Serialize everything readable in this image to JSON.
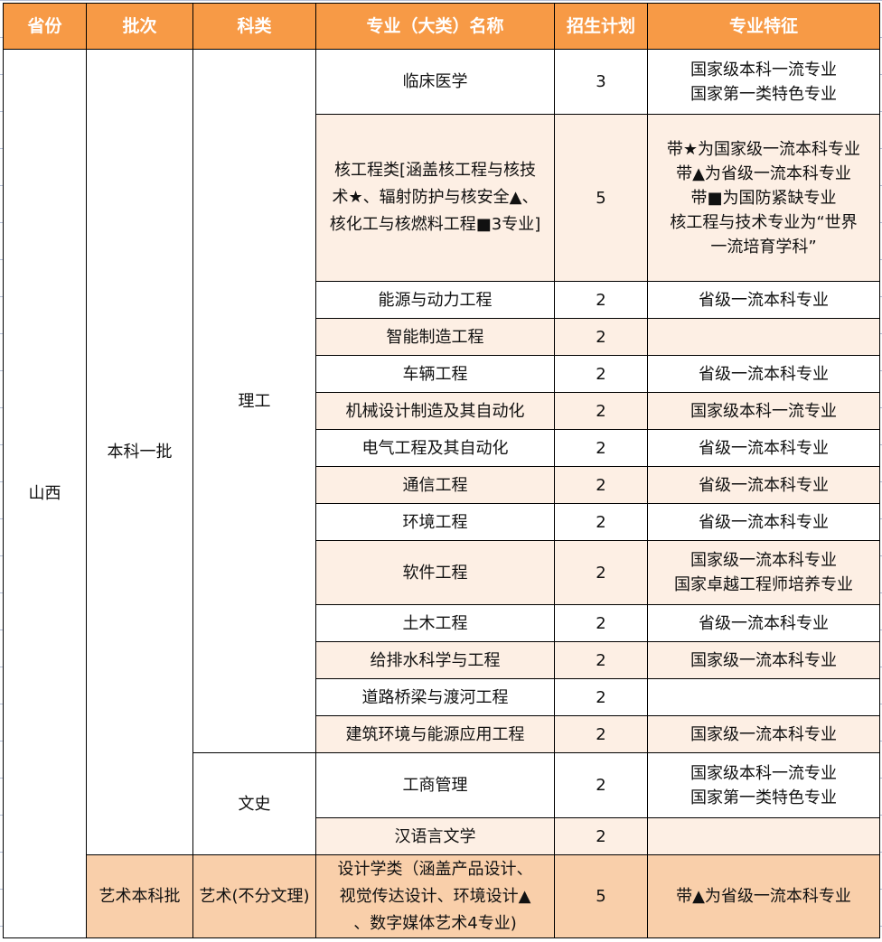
{
  "headers": [
    "省份",
    "批次",
    "科类",
    "专业（大类）名称",
    "招生计划",
    "专业特征"
  ],
  "province": "山西",
  "batches": [
    "本科一批",
    "艺术本科批"
  ],
  "categories": [
    "理工",
    "文史",
    "艺术(不分文理)"
  ],
  "colors": {
    "header_bg": "#f79a46",
    "alt_row_bg": "#fdefe4",
    "art_row_bg": "#f9cfaa"
  },
  "rows": [
    {
      "major": [
        "临床医学"
      ],
      "plan": "3",
      "features": [
        "国家级本科一流专业",
        "国家第一类特色专业"
      ]
    },
    {
      "major": [
        "核工程类[涵盖核工程与核技",
        "术★、辐射防护与核安全▲、",
        "核化工与核燃料工程■3专业]"
      ],
      "plan": "5",
      "features": [
        "带★为国家级一流本科专业",
        "带▲为省级一流本科专业",
        "带■为国防紧缺专业",
        "核工程与技术专业为“世界",
        "一流培育学科”"
      ]
    },
    {
      "major": [
        "能源与动力工程"
      ],
      "plan": "2",
      "features": [
        "省级一流本科专业"
      ]
    },
    {
      "major": [
        "智能制造工程"
      ],
      "plan": "2",
      "features": []
    },
    {
      "major": [
        "车辆工程"
      ],
      "plan": "2",
      "features": [
        "省级一流本科专业"
      ]
    },
    {
      "major": [
        "机械设计制造及其自动化"
      ],
      "plan": "2",
      "features": [
        "国家级本科一流专业"
      ]
    },
    {
      "major": [
        "电气工程及其自动化"
      ],
      "plan": "2",
      "features": [
        "省级一流本科专业"
      ]
    },
    {
      "major": [
        "通信工程"
      ],
      "plan": "2",
      "features": [
        "省级一流本科专业"
      ]
    },
    {
      "major": [
        "环境工程"
      ],
      "plan": "2",
      "features": [
        "省级一流本科专业"
      ]
    },
    {
      "major": [
        "软件工程"
      ],
      "plan": "2",
      "features": [
        "国家级一流本科专业",
        "国家卓越工程师培养专业"
      ]
    },
    {
      "major": [
        "土木工程"
      ],
      "plan": "2",
      "features": [
        "省级一流本科专业"
      ]
    },
    {
      "major": [
        "给排水科学与工程"
      ],
      "plan": "2",
      "features": [
        "国家级一流本科专业"
      ]
    },
    {
      "major": [
        "道路桥梁与渡河工程"
      ],
      "plan": "2",
      "features": []
    },
    {
      "major": [
        "建筑环境与能源应用工程"
      ],
      "plan": "2",
      "features": [
        "国家级一流本科专业"
      ]
    },
    {
      "major": [
        "工商管理"
      ],
      "plan": "2",
      "features": [
        "国家级本科一流专业",
        "国家第一类特色专业"
      ]
    },
    {
      "major": [
        "汉语言文学"
      ],
      "plan": "2",
      "features": []
    },
    {
      "major": [
        "设计学类（涵盖产品设计、",
        "视觉传达设计、环境设计▲",
        "、数字媒体艺术4专业)"
      ],
      "plan": "5",
      "features": [
        "带▲为省级一流本科专业"
      ]
    }
  ]
}
